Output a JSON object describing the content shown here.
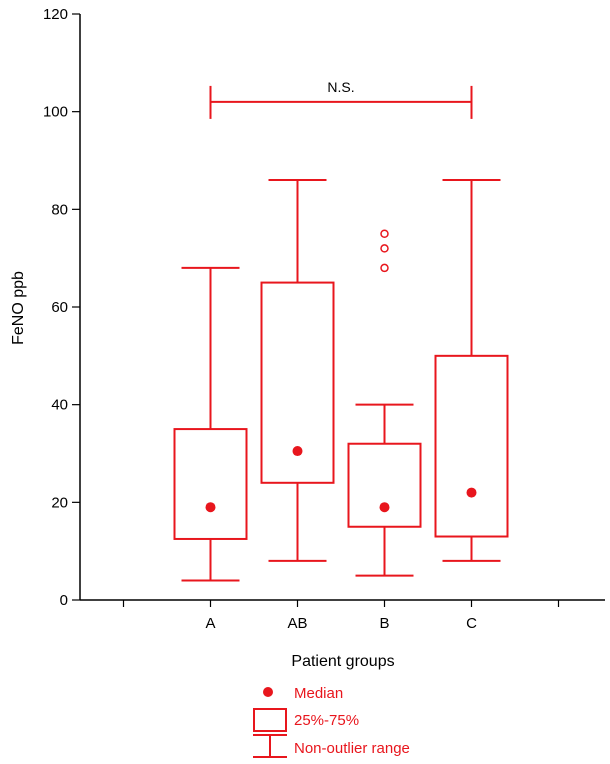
{
  "chart_data": {
    "type": "boxplot",
    "ylabel": "FeNO ppb",
    "xlabel": "Patient groups",
    "ylim": [
      0,
      120
    ],
    "yticks": [
      0,
      20,
      40,
      60,
      80,
      100,
      120
    ],
    "categories": [
      "A",
      "AB",
      "B",
      "C"
    ],
    "boxes": [
      {
        "category": "A",
        "min": 4,
        "q1": 12.5,
        "median": 19,
        "q3": 35,
        "max": 68,
        "outliers": []
      },
      {
        "category": "AB",
        "min": 8,
        "q1": 24,
        "median": 30.5,
        "q3": 65,
        "max": 86,
        "outliers": []
      },
      {
        "category": "B",
        "min": 5,
        "q1": 15,
        "median": 19,
        "q3": 32,
        "max": 40,
        "outliers": [
          68,
          72,
          75
        ]
      },
      {
        "category": "C",
        "min": 8,
        "q1": 13,
        "median": 22,
        "q3": 50,
        "max": 86,
        "outliers": []
      }
    ],
    "significance": {
      "from": "A",
      "to": "C",
      "y": 102,
      "label": "N.S."
    },
    "legend": {
      "median": "Median",
      "box": "25%-75%",
      "range": "Non-outlier range"
    },
    "color": "#e8161d"
  }
}
